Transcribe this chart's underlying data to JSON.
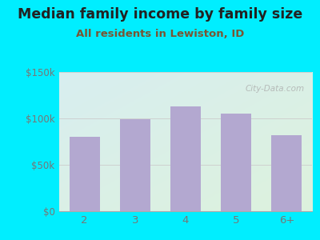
{
  "title": "Median family income by family size",
  "subtitle": "All residents in Lewiston, ID",
  "categories": [
    "2",
    "3",
    "4",
    "5",
    "6+"
  ],
  "values": [
    80000,
    99000,
    113000,
    105000,
    82000
  ],
  "bar_color": "#b3a8d0",
  "ylim": [
    0,
    150000
  ],
  "yticks": [
    0,
    50000,
    100000,
    150000
  ],
  "ytick_labels": [
    "$0",
    "$50k",
    "$100k",
    "$150k"
  ],
  "bg_outer": "#00eeff",
  "bg_plot_topleft": "#d8eef0",
  "bg_plot_bottomright": "#ddf2dd",
  "title_color": "#222222",
  "subtitle_color": "#7a5533",
  "tick_color": "#777777",
  "grid_color": "#cccccc",
  "watermark": "City-Data.com",
  "title_fontsize": 12.5,
  "subtitle_fontsize": 9.5
}
